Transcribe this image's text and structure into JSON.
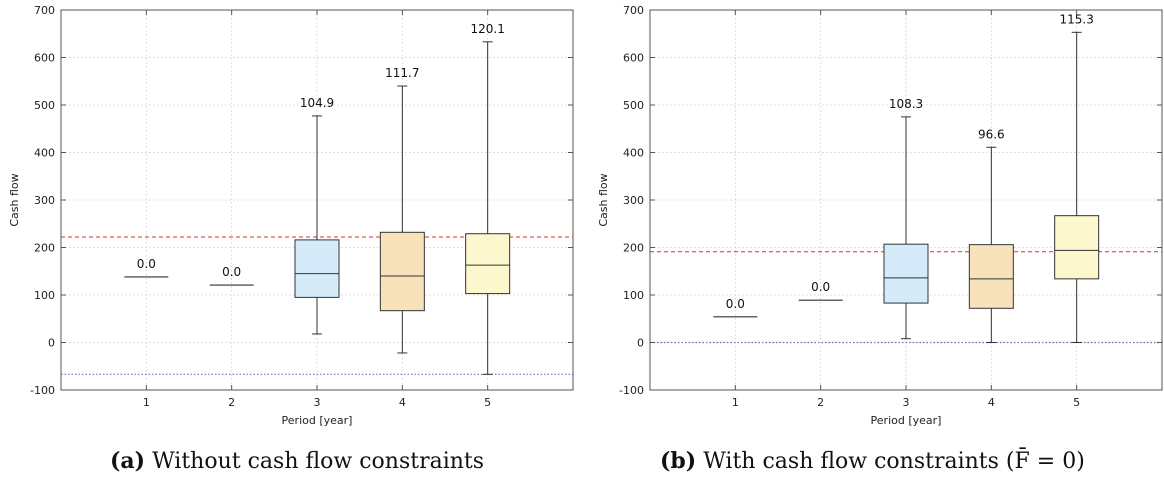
{
  "chart_data": [
    {
      "type": "box",
      "xlabel": "Period [year]",
      "ylabel": "Cash flow",
      "categories": [
        "1",
        "2",
        "3",
        "4",
        "5"
      ],
      "xlim": [
        0,
        6
      ],
      "ylim": [
        -100,
        700
      ],
      "yticks": [
        -100,
        0,
        100,
        200,
        300,
        400,
        500,
        600,
        700
      ],
      "grid": true,
      "reference_lines": [
        {
          "y": 222,
          "color": "#e03030",
          "style": "dashed"
        },
        {
          "y": -67,
          "color": "#7070c0",
          "style": "dotted"
        }
      ],
      "boxes": [
        {
          "x": 1,
          "whisker_low": 138,
          "q1": 138,
          "median": 138,
          "q3": 138,
          "whisker_high": 138,
          "label": "0.0",
          "color": null
        },
        {
          "x": 2,
          "whisker_low": 121,
          "q1": 121,
          "median": 121,
          "q3": 121,
          "whisker_high": 121,
          "label": "0.0",
          "color": null
        },
        {
          "x": 3,
          "whisker_low": 18,
          "q1": 95,
          "median": 145,
          "q3": 216,
          "whisker_high": 477,
          "label": "104.9",
          "color": "#d6ebf9"
        },
        {
          "x": 4,
          "whisker_low": -22,
          "q1": 67,
          "median": 140,
          "q3": 232,
          "whisker_high": 540,
          "label": "111.7",
          "color": "#f8e2bb"
        },
        {
          "x": 5,
          "whisker_low": -67,
          "q1": 103,
          "median": 163,
          "q3": 229,
          "whisker_high": 633,
          "label": "120.1",
          "color": "#fcf7cc"
        }
      ],
      "caption_letter": "(a)",
      "caption_text": "Without cash flow constraints"
    },
    {
      "type": "box",
      "xlabel": "Period [year]",
      "ylabel": "Cash flow",
      "categories": [
        "1",
        "2",
        "3",
        "4",
        "5"
      ],
      "xlim": [
        0,
        6
      ],
      "ylim": [
        -100,
        700
      ],
      "yticks": [
        -100,
        0,
        100,
        200,
        300,
        400,
        500,
        600,
        700
      ],
      "grid": true,
      "reference_lines": [
        {
          "y": 191,
          "color": "#e03030",
          "style": "dashed"
        },
        {
          "y": 0,
          "color": "#7070c0",
          "style": "dotted"
        }
      ],
      "boxes": [
        {
          "x": 1,
          "whisker_low": 54,
          "q1": 54,
          "median": 54,
          "q3": 54,
          "whisker_high": 54,
          "label": "0.0",
          "color": null
        },
        {
          "x": 2,
          "whisker_low": 89,
          "q1": 89,
          "median": 89,
          "q3": 89,
          "whisker_high": 89,
          "label": "0.0",
          "color": null
        },
        {
          "x": 3,
          "whisker_low": 8,
          "q1": 83,
          "median": 136,
          "q3": 207,
          "whisker_high": 475,
          "label": "108.3",
          "color": "#d6ebf9"
        },
        {
          "x": 4,
          "whisker_low": 0,
          "q1": 72,
          "median": 134,
          "q3": 206,
          "whisker_high": 411,
          "label": "96.6",
          "color": "#f8e2bb"
        },
        {
          "x": 5,
          "whisker_low": 0,
          "q1": 134,
          "median": 194,
          "q3": 267,
          "whisker_high": 653,
          "label": "115.3",
          "color": "#fcf7cc"
        }
      ],
      "caption_letter": "(b)",
      "caption_text": "With cash flow constraints (F̄ = 0)"
    }
  ]
}
